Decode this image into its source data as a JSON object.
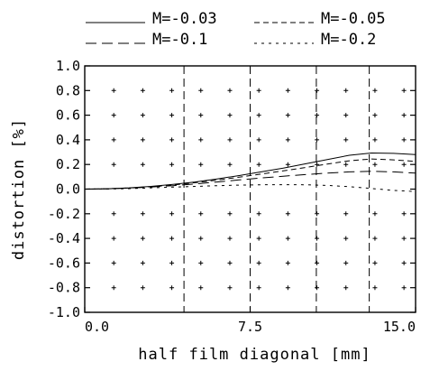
{
  "chart_data": {
    "type": "line",
    "xlabel": "half film diagonal [mm]",
    "ylabel": "distortion [%]",
    "xlim": [
      0,
      15
    ],
    "ylim": [
      -1.0,
      1.0
    ],
    "x_ticks": [
      "0.0",
      "7.5",
      "15.0"
    ],
    "y_ticks": [
      "1.0",
      "0.8",
      "0.6",
      "0.4",
      "0.2",
      "0.0",
      "-0.2",
      "-0.4",
      "-0.6",
      "-0.8",
      "-1.0"
    ],
    "vertical_guides": [
      4.5,
      7.5,
      10.5,
      12.9
    ],
    "legend_position": "top",
    "x": [
      0,
      1,
      2,
      3,
      4,
      5,
      6,
      7,
      8,
      9,
      10,
      11,
      12,
      13,
      14,
      15
    ],
    "series": [
      {
        "name": "M=-0.03",
        "style": "solid",
        "values": [
          0,
          0.003,
          0.01,
          0.022,
          0.038,
          0.058,
          0.083,
          0.11,
          0.14,
          0.17,
          0.205,
          0.24,
          0.275,
          0.293,
          0.29,
          0.28
        ]
      },
      {
        "name": "M=-0.05",
        "style": "dashed",
        "values": [
          0,
          0.003,
          0.009,
          0.02,
          0.034,
          0.052,
          0.073,
          0.097,
          0.122,
          0.148,
          0.175,
          0.204,
          0.23,
          0.245,
          0.237,
          0.225
        ]
      },
      {
        "name": "M=-0.1",
        "style": "longdash",
        "values": [
          0,
          0.002,
          0.008,
          0.017,
          0.028,
          0.042,
          0.058,
          0.075,
          0.09,
          0.105,
          0.118,
          0.13,
          0.14,
          0.145,
          0.14,
          0.13
        ]
      },
      {
        "name": "M=-0.2",
        "style": "dotted",
        "values": [
          0,
          0.001,
          0.004,
          0.01,
          0.016,
          0.022,
          0.028,
          0.032,
          0.035,
          0.036,
          0.035,
          0.03,
          0.02,
          0.005,
          -0.01,
          -0.02
        ]
      }
    ]
  }
}
